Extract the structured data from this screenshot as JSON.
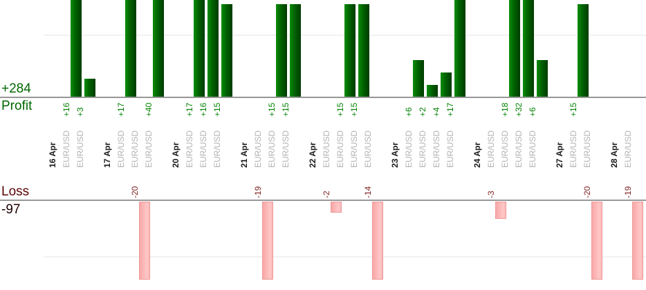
{
  "summary": {
    "profit_label": "Profit",
    "profit_total": "+284",
    "loss_label": "Loss",
    "loss_total": "-97"
  },
  "chart_data": {
    "type": "bar",
    "description": "Daily trade profit/loss report: green bars up = profit per trade, pink bars down = loss per trade, grouped by date, one column per trade",
    "symbol": "EUR/USD",
    "profit_total": 284,
    "loss_total": -97,
    "grid_step": 10,
    "legend_position": "left",
    "groups": [
      {
        "date": "16 Apr",
        "trades": [
          {
            "symbol": "EUR/USD",
            "value": 16,
            "label": "+16"
          },
          {
            "symbol": "EUR/USD",
            "value": 3,
            "label": "+3"
          }
        ]
      },
      {
        "date": "17 Apr",
        "trades": [
          {
            "symbol": "EUR/USD",
            "value": 17,
            "label": "+17"
          },
          {
            "symbol": "EUR/USD",
            "value": -20,
            "label": "-20"
          },
          {
            "symbol": "EUR/USD",
            "value": 40,
            "label": "+40"
          }
        ]
      },
      {
        "date": "20 Apr",
        "trades": [
          {
            "symbol": "EUR/USD",
            "value": 17,
            "label": "+17"
          },
          {
            "symbol": "EUR/USD",
            "value": 16,
            "label": "+16"
          },
          {
            "symbol": "EUR/USD",
            "value": 15,
            "label": "+15"
          }
        ]
      },
      {
        "date": "21 Apr",
        "trades": [
          {
            "symbol": "EUR/USD",
            "value": -19,
            "label": "-19"
          },
          {
            "symbol": "EUR/USD",
            "value": 15,
            "label": "+15"
          },
          {
            "symbol": "EUR/USD",
            "value": 15,
            "label": "+15"
          }
        ]
      },
      {
        "date": "22 Apr",
        "trades": [
          {
            "symbol": "EUR/USD",
            "value": -2,
            "label": "-2"
          },
          {
            "symbol": "EUR/USD",
            "value": 15,
            "label": "+15"
          },
          {
            "symbol": "EUR/USD",
            "value": 15,
            "label": "+15"
          },
          {
            "symbol": "EUR/USD",
            "value": -14,
            "label": "-14"
          }
        ]
      },
      {
        "date": "23 Apr",
        "trades": [
          {
            "symbol": "EUR/USD",
            "value": 6,
            "label": "+6"
          },
          {
            "symbol": "EUR/USD",
            "value": 2,
            "label": "+2"
          },
          {
            "symbol": "EUR/USD",
            "value": 4,
            "label": "+4"
          },
          {
            "symbol": "EUR/USD",
            "value": 17,
            "label": "+17"
          }
        ]
      },
      {
        "date": "24 Apr",
        "trades": [
          {
            "symbol": "EUR/USD",
            "value": -3,
            "label": "-3"
          },
          {
            "symbol": "EUR/USD",
            "value": 18,
            "label": "+18"
          },
          {
            "symbol": "EUR/USD",
            "value": 32,
            "label": "+32"
          },
          {
            "symbol": "EUR/USD",
            "value": 6,
            "label": "+6"
          }
        ]
      },
      {
        "date": "27 Apr",
        "trades": [
          {
            "symbol": "EUR/USD",
            "value": 15,
            "label": "+15"
          },
          {
            "symbol": "EUR/USD",
            "value": -20,
            "label": "-20"
          }
        ]
      },
      {
        "date": "28 Apr",
        "trades": [
          {
            "symbol": "EUR/USD",
            "value": -19,
            "label": "-19"
          }
        ]
      }
    ]
  },
  "colors": {
    "profit_text": "#006600",
    "profit_value_text": "#008000",
    "profit_bar_dark": "#003c00",
    "profit_bar_light": "#0a8d0a",
    "loss_text": "#5a0202",
    "loss_value_text": "#7f1f1f",
    "loss_bar_fill": "#ffc7c7",
    "loss_bar_border": "#ee9a9a",
    "date_text": "#1a1a1a",
    "symbol_text": "#b3b3b3",
    "baseline": "#979797",
    "gridline": "#f1f1f1"
  }
}
